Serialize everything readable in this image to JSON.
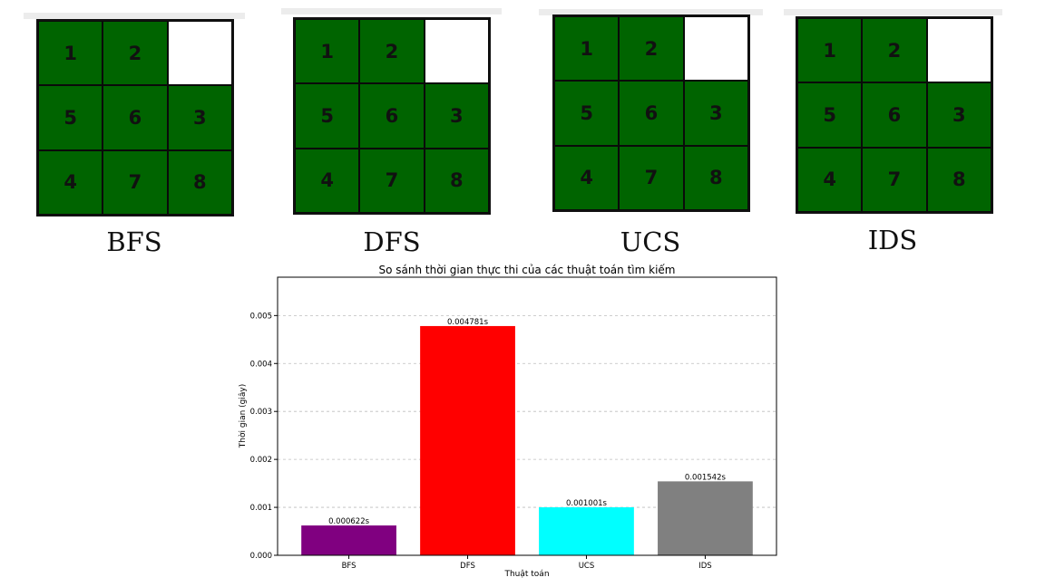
{
  "boards": [
    {
      "name": "BFS",
      "tiles": [
        "1",
        "2",
        "",
        "5",
        "6",
        "3",
        "4",
        "7",
        "8"
      ]
    },
    {
      "name": "DFS",
      "tiles": [
        "1",
        "2",
        "",
        "5",
        "6",
        "3",
        "4",
        "7",
        "8"
      ]
    },
    {
      "name": "UCS",
      "tiles": [
        "1",
        "2",
        "",
        "5",
        "6",
        "3",
        "4",
        "7",
        "8"
      ]
    },
    {
      "name": "IDS",
      "tiles": [
        "1",
        "2",
        "",
        "5",
        "6",
        "3",
        "4",
        "7",
        "8"
      ]
    }
  ],
  "colors": {
    "tile": "#006400",
    "blank": "#ffffff"
  },
  "chart_data": {
    "type": "bar",
    "title": "So sánh thời gian thực thi của các thuật toán tìm kiếm",
    "xlabel": "Thuật toán",
    "ylabel": "Thời gian (giây)",
    "categories": [
      "BFS",
      "DFS",
      "UCS",
      "IDS"
    ],
    "values": [
      0.000622,
      0.004781,
      0.001001,
      0.001542
    ],
    "data_labels": [
      "0.000622s",
      "0.004781s",
      "0.001001s",
      "0.001542s"
    ],
    "colors": [
      "#800080",
      "#ff0000",
      "#00ffff",
      "#808080"
    ],
    "yticks": [
      "0.000",
      "0.001",
      "0.002",
      "0.003",
      "0.004",
      "0.005"
    ],
    "ylim": [
      0,
      0.0058
    ],
    "grid": "horizontal dashed"
  }
}
